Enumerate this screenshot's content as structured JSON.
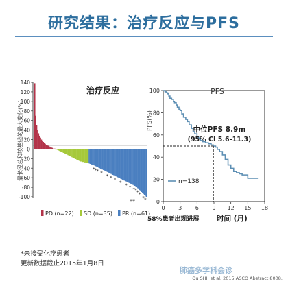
{
  "page": {
    "title": "研究结果：治疗反应与PFS",
    "footnote_lines": [
      "*未接受化疗患者",
      "更新数据截止2015年1月8日"
    ],
    "citation": "Ou SHI, et al. 2015 ASCO Abstract 8008.",
    "watermark": "肺癌多学科会诊",
    "colors": {
      "title": "#2d6e9e",
      "pd": "#b3344a",
      "sd": "#a6c93a",
      "pr": "#4a7fc0",
      "pfs_curve": "#5d8fb4"
    }
  },
  "chart_data": [
    {
      "type": "bar",
      "title": "治疗反应",
      "ylabel": "最长径总和较基线的最大变化(%)",
      "ylim": [
        -100,
        140
      ],
      "yticks": [
        140,
        120,
        100,
        80,
        60,
        40,
        20,
        0,
        -20,
        -40,
        -60,
        -80,
        -100
      ],
      "legend": [
        {
          "label": "PD (n=22)",
          "color": "#b3344a"
        },
        {
          "label": "SD (n=35)",
          "color": "#a6c93a"
        },
        {
          "label": "PR (n=61)",
          "color": "#4a7fc0"
        }
      ],
      "legend_position": "bottom",
      "series": [
        {
          "group": "PD",
          "color": "#b3344a",
          "values": [
            138,
            70,
            50,
            40,
            33,
            28,
            24,
            20,
            17,
            15,
            13,
            11,
            9,
            8,
            7,
            6,
            5,
            4,
            3,
            2,
            1,
            1
          ]
        },
        {
          "group": "SD",
          "color": "#a6c93a",
          "values": [
            0,
            -1,
            -2,
            -3,
            -4,
            -5,
            -6,
            -7,
            -8,
            -9,
            -10,
            -11,
            -12,
            -13,
            -14,
            -15,
            -16,
            -17,
            -18,
            -19,
            -20,
            -21,
            -22,
            -23,
            -24,
            -25,
            -26,
            -26,
            -27,
            -27,
            -28,
            -28,
            -29,
            -29,
            -29
          ]
        },
        {
          "group": "PR",
          "color": "#4a7fc0",
          "values": [
            -30,
            -31,
            -32,
            -33,
            -33,
            -34,
            -35,
            -36,
            -37,
            -38,
            -39,
            -40,
            -41,
            -42,
            -43,
            -44,
            -45,
            -46,
            -47,
            -48,
            -49,
            -50,
            -51,
            -52,
            -53,
            -54,
            -55,
            -56,
            -57,
            -58,
            -59,
            -60,
            -61,
            -62,
            -63,
            -64,
            -65,
            -66,
            -67,
            -68,
            -69,
            -70,
            -71,
            -72,
            -73,
            -74,
            -75,
            -76,
            -77,
            -78,
            -80,
            -82,
            -84,
            -86,
            -88,
            -90,
            -92,
            -94,
            -96,
            -98,
            -100
          ]
        }
      ],
      "asterisk_note": "*"
    },
    {
      "type": "line",
      "title": "PFS",
      "xlabel": "时间 (月)",
      "ylabel": "PFS(%)",
      "xlim": [
        0,
        18
      ],
      "ylim": [
        0,
        100
      ],
      "xticks": [
        0,
        3,
        6,
        9,
        12,
        15,
        18
      ],
      "yticks": [
        0,
        20,
        40,
        60,
        80,
        100
      ],
      "annotations": {
        "median_label": "中位PFS 8.9m",
        "ci_label": "(95% CI 5.6-11.3)",
        "n_label": "n=138",
        "progression_note": "58%患者出现进展",
        "median_x": 8.9,
        "median_y": 50
      },
      "series": [
        {
          "name": "PFS",
          "x": [
            0,
            0.3,
            0.5,
            0.8,
            1.0,
            1.2,
            1.5,
            1.8,
            2.0,
            2.3,
            2.5,
            2.8,
            3.0,
            3.3,
            3.6,
            4.0,
            4.3,
            4.6,
            5.0,
            5.3,
            5.6,
            6.0,
            6.3,
            6.6,
            7.0,
            7.5,
            8.0,
            8.5,
            8.9,
            9.3,
            9.6,
            10.0,
            10.5,
            11.0,
            11.5,
            12.0,
            12.5,
            13.0,
            13.5,
            14.0,
            15.0,
            16.0,
            16.8
          ],
          "y": [
            100,
            99,
            98,
            97,
            95,
            93,
            92,
            90,
            89,
            87,
            85,
            83,
            82,
            79,
            76,
            74,
            72,
            69,
            66,
            63,
            61,
            58,
            57,
            55,
            54,
            53,
            52,
            51,
            50,
            49,
            47,
            45,
            42,
            38,
            33,
            30,
            27,
            26,
            25,
            24,
            21,
            21,
            21
          ]
        }
      ]
    }
  ]
}
